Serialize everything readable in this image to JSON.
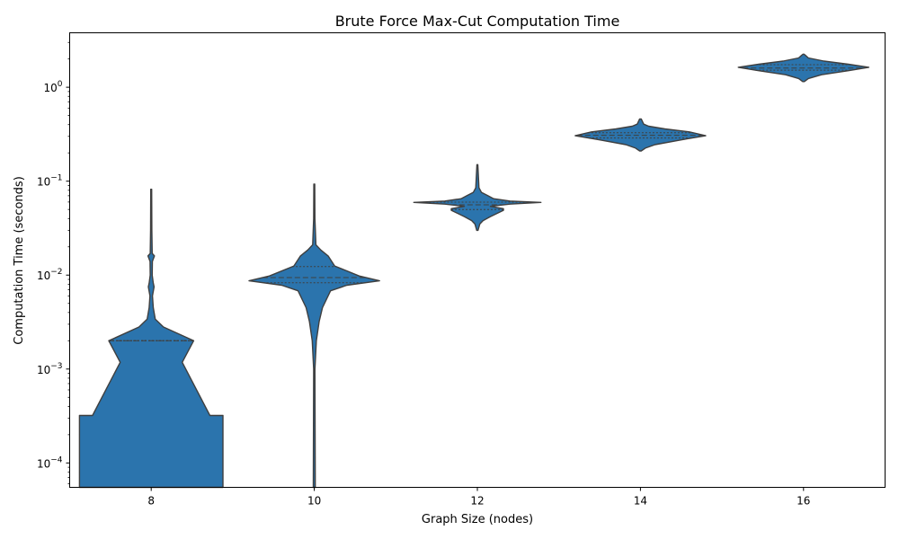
{
  "chart_data": {
    "type": "violin",
    "title": "Brute Force Max-Cut Computation Time",
    "xlabel": "Graph Size (nodes)",
    "ylabel": "Computation Time (seconds)",
    "yscale": "log",
    "ylim": [
      5.5e-05,
      3.8
    ],
    "xlim": [
      7.0,
      17.0
    ],
    "yticks": [
      {
        "value": 0.0001,
        "base": "10",
        "exp": "−4"
      },
      {
        "value": 0.001,
        "base": "10",
        "exp": "−3"
      },
      {
        "value": 0.01,
        "base": "10",
        "exp": "−2"
      },
      {
        "value": 0.1,
        "base": "10",
        "exp": "−1"
      },
      {
        "value": 1,
        "base": "10",
        "exp": "0"
      }
    ],
    "grid": false,
    "color": "#2b74ad",
    "categories": [
      "8",
      "10",
      "12",
      "14",
      "16"
    ],
    "series": [
      {
        "x": 8,
        "quartiles": [
          0.002,
          0.002,
          0.002
        ],
        "density": [
          [
            5.5e-05,
            0.88
          ],
          [
            0.00032,
            0.88
          ],
          [
            0.00032,
            0.72
          ],
          [
            0.00118,
            0.38
          ],
          [
            0.002,
            0.52
          ],
          [
            0.0028,
            0.15
          ],
          [
            0.0034,
            0.05
          ],
          [
            0.0045,
            0.025
          ],
          [
            0.006,
            0.015
          ],
          [
            0.0075,
            0.035
          ],
          [
            0.0082,
            0.025
          ],
          [
            0.01,
            0.012
          ],
          [
            0.014,
            0.014
          ],
          [
            0.016,
            0.04
          ],
          [
            0.017,
            0.012
          ],
          [
            0.03,
            0.008
          ],
          [
            0.082,
            0.005
          ]
        ]
      },
      {
        "x": 10,
        "quartiles": [
          0.0083,
          0.0094,
          0.0123
        ],
        "density": [
          [
            5.5e-05,
            0.012
          ],
          [
            0.001,
            0.008
          ],
          [
            0.002,
            0.025
          ],
          [
            0.0032,
            0.06
          ],
          [
            0.0045,
            0.1
          ],
          [
            0.0068,
            0.2
          ],
          [
            0.0078,
            0.4
          ],
          [
            0.0087,
            0.8
          ],
          [
            0.0098,
            0.55
          ],
          [
            0.0125,
            0.25
          ],
          [
            0.016,
            0.17
          ],
          [
            0.0185,
            0.08
          ],
          [
            0.021,
            0.02
          ],
          [
            0.04,
            0.008
          ],
          [
            0.093,
            0.005
          ]
        ]
      },
      {
        "x": 12,
        "quartiles": [
          0.05,
          0.056,
          0.0598
        ],
        "density": [
          [
            0.03,
            0.008
          ],
          [
            0.035,
            0.03
          ],
          [
            0.038,
            0.07
          ],
          [
            0.042,
            0.16
          ],
          [
            0.049,
            0.32
          ],
          [
            0.051,
            0.32
          ],
          [
            0.054,
            0.16
          ],
          [
            0.057,
            0.4
          ],
          [
            0.0595,
            0.78
          ],
          [
            0.0615,
            0.4
          ],
          [
            0.065,
            0.2
          ],
          [
            0.07,
            0.13
          ],
          [
            0.076,
            0.05
          ],
          [
            0.085,
            0.02
          ],
          [
            0.15,
            0.006
          ]
        ]
      },
      {
        "x": 14,
        "quartiles": [
          0.288,
          0.308,
          0.328
        ],
        "density": [
          [
            0.21,
            0.01
          ],
          [
            0.225,
            0.06
          ],
          [
            0.245,
            0.18
          ],
          [
            0.275,
            0.5
          ],
          [
            0.305,
            0.8
          ],
          [
            0.335,
            0.6
          ],
          [
            0.36,
            0.3
          ],
          [
            0.385,
            0.1
          ],
          [
            0.405,
            0.04
          ],
          [
            0.46,
            0.01
          ]
        ]
      },
      {
        "x": 16,
        "quartiles": [
          1.52,
          1.6,
          1.74
        ],
        "density": [
          [
            1.15,
            0.01
          ],
          [
            1.24,
            0.06
          ],
          [
            1.36,
            0.22
          ],
          [
            1.5,
            0.55
          ],
          [
            1.63,
            0.8
          ],
          [
            1.76,
            0.55
          ],
          [
            1.9,
            0.25
          ],
          [
            2.05,
            0.06
          ],
          [
            2.2,
            0.02
          ],
          [
            2.25,
            0.005
          ]
        ]
      }
    ]
  }
}
